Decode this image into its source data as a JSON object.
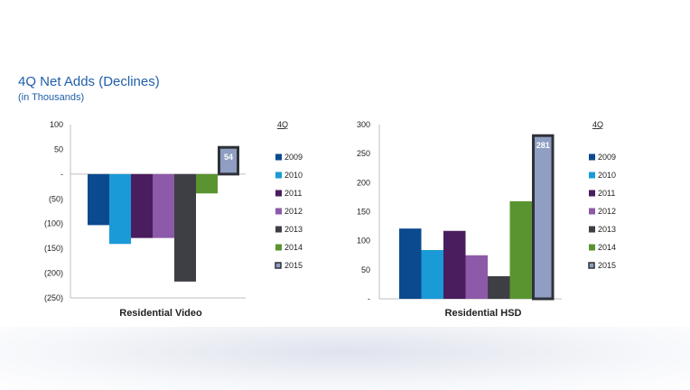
{
  "header": {
    "title": "4Q Net Adds (Declines)",
    "subtitle": "(in Thousands)"
  },
  "legend_heading": "4Q",
  "colors": {
    "2009": "#0b4a8f",
    "2010": "#1a9ad6",
    "2011": "#4a1d5e",
    "2012": "#8c5aa8",
    "2013": "#3d3f45",
    "2014": "#5a9430",
    "2015": "#8f9ec2",
    "highlight_border": "#2e3238",
    "axis": "#bfbfbf"
  },
  "chart_data": [
    {
      "type": "bar",
      "xlabel": "Residential Video",
      "ylim": [
        -250,
        100
      ],
      "yticks": [
        100,
        50,
        0,
        -50,
        -100,
        -150,
        -200,
        -250
      ],
      "ytick_labels": [
        "100",
        "50",
        "-",
        "(50)",
        "(100)",
        "(150)",
        "(200)",
        "(250)"
      ],
      "series": [
        {
          "name": "2009",
          "value": -103
        },
        {
          "name": "2010",
          "value": -141
        },
        {
          "name": "2011",
          "value": -129
        },
        {
          "name": "2012",
          "value": -129
        },
        {
          "name": "2013",
          "value": -217
        },
        {
          "name": "2014",
          "value": -39
        },
        {
          "name": "2015",
          "value": 54,
          "label": "54",
          "highlight": true
        }
      ]
    },
    {
      "type": "bar",
      "xlabel": "Residential HSD",
      "ylim": [
        0,
        300
      ],
      "yticks": [
        300,
        250,
        200,
        150,
        100,
        50,
        0
      ],
      "ytick_labels": [
        "300",
        "250",
        "200",
        "150",
        "100",
        "50",
        "-"
      ],
      "series": [
        {
          "name": "2009",
          "value": 121
        },
        {
          "name": "2010",
          "value": 84
        },
        {
          "name": "2011",
          "value": 117
        },
        {
          "name": "2012",
          "value": 75
        },
        {
          "name": "2013",
          "value": 39
        },
        {
          "name": "2014",
          "value": 168
        },
        {
          "name": "2015",
          "value": 281,
          "label": "281",
          "highlight": true
        }
      ]
    }
  ]
}
